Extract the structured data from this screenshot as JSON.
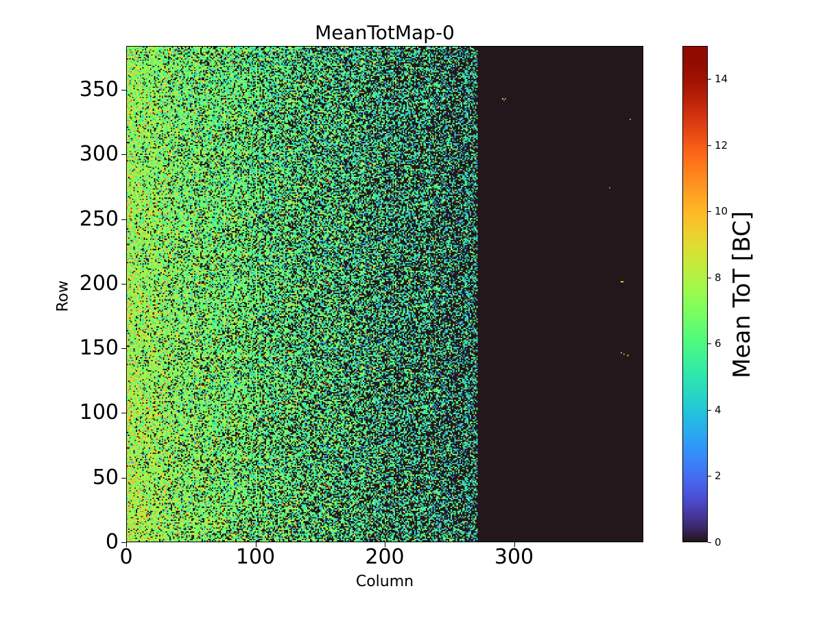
{
  "chart_data": {
    "type": "heatmap",
    "title": "MeanTotMap-0",
    "xlabel": "Column",
    "ylabel": "Row",
    "xlim": [
      0,
      400
    ],
    "ylim": [
      0,
      384
    ],
    "xticks": [
      0,
      100,
      200,
      300
    ],
    "yticks": [
      0,
      50,
      100,
      150,
      200,
      250,
      300,
      350
    ],
    "colormap": "turbo",
    "colorbar": {
      "label": "Mean ToT [BC]",
      "range": [
        0,
        15
      ],
      "ticks": [
        0,
        2,
        4,
        6,
        8,
        10,
        12,
        14
      ]
    },
    "summary": {
      "active_columns": [
        0,
        271
      ],
      "occupancy_at_col0": 0.95,
      "occupancy_at_col271": 0.35,
      "mean_tot_at_col0": 8.3,
      "mean_tot_at_col271": 5.0,
      "empty_value": 0
    },
    "hot_pixels": [
      {
        "col": 291,
        "row": 343,
        "value": 10
      },
      {
        "col": 293,
        "row": 343,
        "value": 10
      },
      {
        "col": 292,
        "row": 342,
        "value": 3
      },
      {
        "col": 390,
        "row": 327,
        "value": 10
      },
      {
        "col": 374,
        "row": 274,
        "value": 3
      },
      {
        "col": 383,
        "row": 201,
        "value": 10
      },
      {
        "col": 384,
        "row": 201,
        "value": 8
      },
      {
        "col": 383,
        "row": 146,
        "value": 5
      },
      {
        "col": 385,
        "row": 145,
        "value": 10
      },
      {
        "col": 388,
        "row": 144,
        "value": 10
      }
    ]
  }
}
